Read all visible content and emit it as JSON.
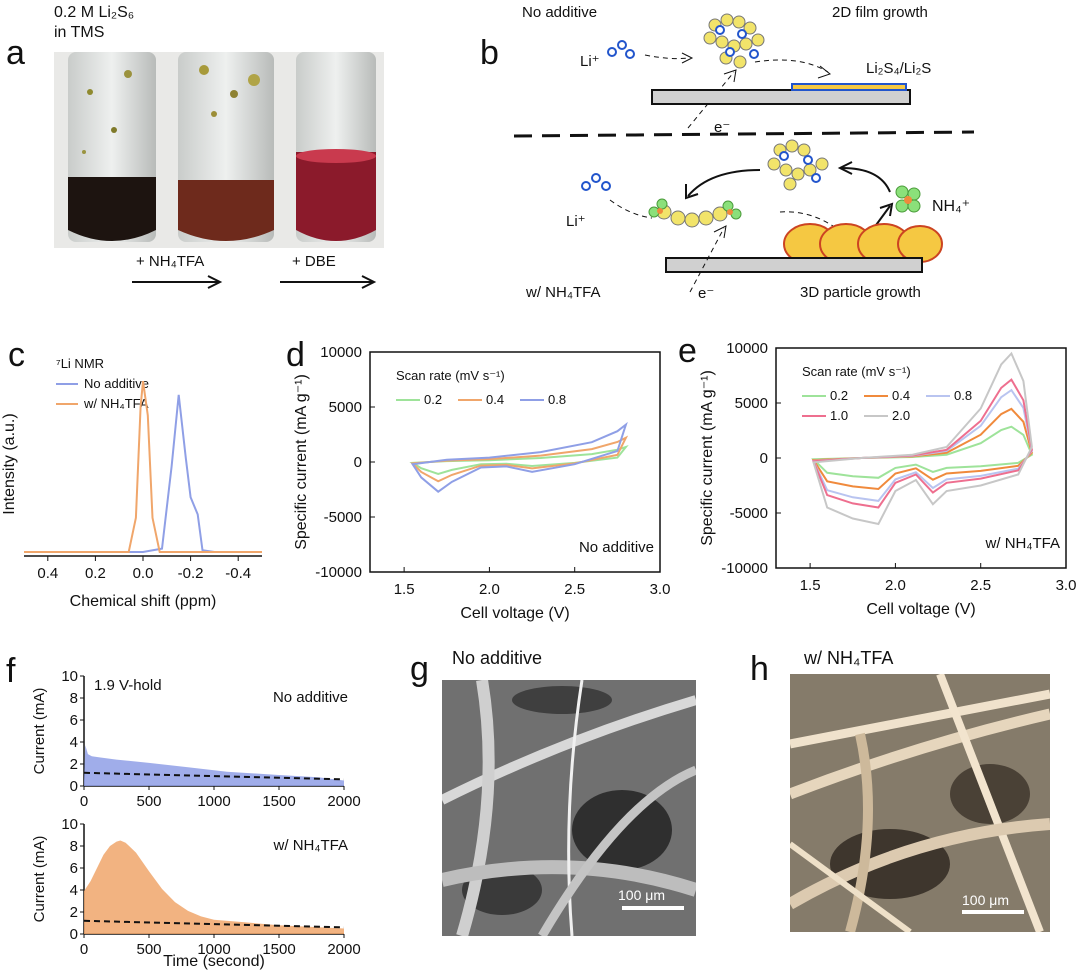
{
  "panels": {
    "a": {
      "letter": "a",
      "caption_line1": "0.2 M Li₂S₆",
      "caption_line2": "in TMS",
      "arrow1": "+ NH₄TFA",
      "arrow2": "+ DBE"
    },
    "b": {
      "letter": "b",
      "top_title": "No additive",
      "top_growth": "2D film growth",
      "top_li": "Li⁺",
      "top_product": "Li₂S₄/Li₂S",
      "top_electron": "e⁻",
      "bottom_li": "Li⁺",
      "bottom_nh4": "NH₄⁺",
      "bottom_title": "w/ NH₄TFA",
      "bottom_electron": "e⁻",
      "bottom_growth": "3D particle growth"
    },
    "c": {
      "letter": "c"
    },
    "d": {
      "letter": "d"
    },
    "e": {
      "letter": "e"
    },
    "f": {
      "letter": "f"
    },
    "g": {
      "letter": "g",
      "title": "No additive",
      "scalebar": "100 μm"
    },
    "h": {
      "letter": "h",
      "title": "w/ NH₄TFA",
      "scalebar": "100 μm"
    }
  },
  "colors": {
    "blue": "#8f9fe6",
    "orange": "#f0a66b",
    "green": "#9ee39a",
    "pink": "#ee6f8f",
    "light_blue": "#b9c4f0",
    "grey": "#c7c7c7",
    "dark_orange": "#f08a3c"
  },
  "chart_data": [
    {
      "panel": "c",
      "type": "line",
      "title": "",
      "annotation": "⁷Li NMR",
      "xlabel": "Chemical shift (ppm)",
      "ylabel": "Intensity (a.u.)",
      "xlim": [
        0.5,
        -0.5
      ],
      "xticks": [
        "0.4",
        "0.2",
        "0.0",
        "-0.2",
        "-0.4"
      ],
      "legend_placement": "top-left",
      "series": [
        {
          "name": "No additive",
          "color": "#8f9fe6",
          "x": [
            0.5,
            0.0,
            -0.08,
            -0.12,
            -0.15,
            -0.18,
            -0.2,
            -0.23,
            -0.25,
            -0.3,
            -0.5
          ],
          "y": [
            0.0,
            0.0,
            0.02,
            0.5,
            0.92,
            0.55,
            0.32,
            0.22,
            0.01,
            0.0,
            0.0
          ]
        },
        {
          "name": "w/ NH₄TFA",
          "color": "#f0a66b",
          "x": [
            0.5,
            0.06,
            0.03,
            0.01,
            0.0,
            -0.02,
            -0.04,
            -0.07,
            -0.5
          ],
          "y": [
            0.0,
            0.0,
            0.2,
            0.85,
            1.0,
            0.8,
            0.2,
            0.0,
            0.0
          ]
        }
      ]
    },
    {
      "panel": "d",
      "type": "line",
      "title": "",
      "xlabel": "Cell voltage (V)",
      "ylabel": "Specific current (mA g⁻¹)",
      "xlim": [
        1.3,
        3.0
      ],
      "ylim": [
        -10000,
        10000
      ],
      "xticks": [
        "1.5",
        "2.0",
        "2.5",
        "3.0"
      ],
      "yticks": [
        "-10000",
        "-5000",
        "0",
        "5000",
        "10000"
      ],
      "legend_title": "Scan rate (mV s⁻¹)",
      "annotation": "No additive",
      "series": [
        {
          "name": "0.2",
          "color": "#9ee39a",
          "scale": 0.4
        },
        {
          "name": "0.4",
          "color": "#f0a66b",
          "scale": 0.65
        },
        {
          "name": "0.8",
          "color": "#8f9fe6",
          "scale": 1.0
        }
      ],
      "cv_base": {
        "voltage": [
          1.55,
          1.75,
          2.0,
          2.3,
          2.6,
          2.75,
          2.8,
          2.75,
          2.5,
          2.25,
          2.1,
          1.95,
          1.78,
          1.7,
          1.6,
          1.55
        ],
        "current": [
          -200,
          200,
          400,
          900,
          1800,
          2800,
          3400,
          1000,
          -200,
          -900,
          -400,
          -500,
          -1800,
          -2700,
          -1400,
          -200
        ]
      }
    },
    {
      "panel": "e",
      "type": "line",
      "title": "",
      "xlabel": "Cell voltage (V)",
      "ylabel": "Specific current (mA g⁻¹)",
      "xlim": [
        1.3,
        3.0
      ],
      "ylim": [
        -10000,
        10000
      ],
      "xticks": [
        "1.5",
        "2.0",
        "2.5",
        "3.0"
      ],
      "yticks": [
        "-10000",
        "-5000",
        "0",
        "5000",
        "10000"
      ],
      "legend_title": "Scan rate (mV s⁻¹)",
      "annotation": "w/ NH₄TFA",
      "series": [
        {
          "name": "0.2",
          "color": "#9ee39a",
          "scale": 0.3
        },
        {
          "name": "0.4",
          "color": "#f08a3c",
          "scale": 0.47
        },
        {
          "name": "0.8",
          "color": "#b9c4f0",
          "scale": 0.65
        },
        {
          "name": "1.0",
          "color": "#ee6f8f",
          "scale": 0.75
        },
        {
          "name": "2.0",
          "color": "#c7c7c7",
          "scale": 1.0
        }
      ],
      "cv_base": {
        "voltage": [
          1.52,
          1.8,
          2.1,
          2.3,
          2.5,
          2.62,
          2.68,
          2.75,
          2.8,
          2.72,
          2.5,
          2.3,
          2.22,
          2.12,
          2.0,
          1.9,
          1.75,
          1.6,
          1.52
        ],
        "current": [
          -400,
          0,
          300,
          1000,
          4500,
          8500,
          9500,
          7000,
          1000,
          -1500,
          -2500,
          -3000,
          -4200,
          -2000,
          -3000,
          -6000,
          -5500,
          -4500,
          -400
        ]
      }
    },
    {
      "panel": "f",
      "type": "area",
      "title": "",
      "annotation": "1.9 V-hold",
      "xlabel": "Time (second)",
      "charts": [
        {
          "label": "No additive",
          "ylabel": "Current (mA)",
          "color": "#8f9fe6",
          "xlim": [
            0,
            2000
          ],
          "ylim": [
            0,
            10
          ],
          "xticks": [
            "0",
            "500",
            "1000",
            "1500",
            "2000"
          ],
          "yticks": [
            "0",
            "2",
            "4",
            "6",
            "8",
            "10"
          ],
          "x": [
            0,
            10,
            30,
            60,
            120,
            250,
            500,
            800,
            1100,
            1500,
            1800,
            2000
          ],
          "y": [
            0.5,
            3.7,
            2.9,
            2.7,
            2.6,
            2.4,
            2.1,
            1.7,
            1.3,
            1.0,
            0.8,
            0.5
          ],
          "baseline": [
            1.2,
            0.6
          ]
        },
        {
          "label": "w/ NH₄TFA",
          "ylabel": "Current (mA)",
          "color": "#f0a66b",
          "xlim": [
            0,
            2000
          ],
          "ylim": [
            0,
            10
          ],
          "xticks": [
            "0",
            "500",
            "1000",
            "1500",
            "2000"
          ],
          "yticks": [
            "0",
            "2",
            "4",
            "6",
            "8",
            "10"
          ],
          "x": [
            0,
            50,
            100,
            150,
            200,
            250,
            280,
            320,
            400,
            500,
            600,
            700,
            800,
            900,
            1000,
            1200,
            1500,
            2000
          ],
          "y": [
            3.9,
            4.8,
            6.0,
            7.2,
            8.0,
            8.4,
            8.5,
            8.3,
            7.4,
            5.7,
            4.1,
            2.9,
            2.1,
            1.6,
            1.3,
            1.1,
            0.8,
            0.5
          ],
          "baseline": [
            1.2,
            0.6
          ]
        }
      ]
    }
  ]
}
